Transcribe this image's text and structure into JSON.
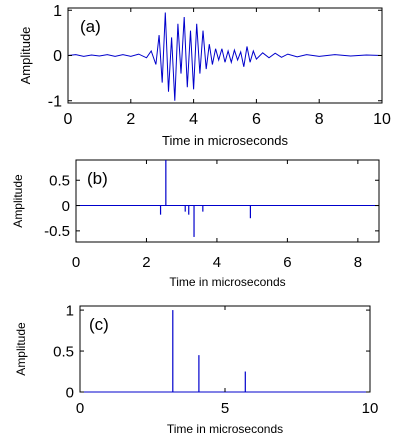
{
  "chart_data": [
    {
      "type": "line",
      "panel_label": "(a)",
      "xlabel": "Time in microseconds",
      "ylabel": "Amplitude",
      "xlim": [
        0,
        10
      ],
      "ylim": [
        -1.05,
        1.05
      ],
      "x_ticks": [
        0,
        2,
        4,
        6,
        8,
        10
      ],
      "x_tick_labels": [
        "0",
        "2",
        "4",
        "6",
        "8",
        "10"
      ],
      "y_ticks": [
        -1,
        0,
        1
      ],
      "y_tick_labels": [
        "-1",
        "0",
        "1"
      ],
      "color": "#0000cc",
      "series": [
        {
          "x": [
            0,
            0.25,
            0.5,
            0.75,
            1,
            1.25,
            1.5,
            1.75,
            2,
            2.25,
            2.5,
            2.65,
            2.8,
            2.9,
            3.0,
            3.1,
            3.2,
            3.3,
            3.4,
            3.5,
            3.6,
            3.7,
            3.8,
            3.9,
            4.0,
            4.1,
            4.2,
            4.3,
            4.4,
            4.5,
            4.6,
            4.7,
            4.8,
            4.9,
            5.0,
            5.1,
            5.2,
            5.3,
            5.4,
            5.5,
            5.6,
            5.7,
            5.8,
            5.9,
            6.0,
            6.2,
            6.4,
            6.6,
            6.8,
            7.0,
            7.3,
            7.6,
            8.0,
            8.5,
            9.0,
            9.5,
            10
          ],
          "y": [
            0,
            0.02,
            -0.02,
            0.01,
            -0.01,
            0.02,
            -0.02,
            0.02,
            -0.02,
            0.03,
            -0.05,
            0.1,
            -0.2,
            0.45,
            -0.6,
            0.95,
            -0.8,
            0.4,
            -1.0,
            0.7,
            -0.4,
            0.85,
            -0.7,
            0.55,
            -0.75,
            0.7,
            -0.4,
            0.55,
            -0.3,
            0.25,
            -0.2,
            0.15,
            -0.1,
            0.15,
            -0.15,
            0.1,
            -0.15,
            0.12,
            -0.1,
            0.08,
            -0.25,
            0.2,
            -0.15,
            0.1,
            -0.08,
            0.06,
            -0.05,
            0.05,
            -0.04,
            0.03,
            -0.03,
            0.02,
            -0.02,
            0.02,
            -0.01,
            0.01,
            0
          ]
        }
      ]
    },
    {
      "type": "stem",
      "panel_label": "(b)",
      "xlabel": "Time in microseconds",
      "ylabel": "Amplitude",
      "xlim": [
        0,
        8.6
      ],
      "ylim": [
        -0.72,
        0.9
      ],
      "x_ticks": [
        0,
        2,
        4,
        6,
        8
      ],
      "x_tick_labels": [
        "0",
        "2",
        "4",
        "6",
        "8"
      ],
      "y_ticks": [
        -0.5,
        0,
        0.5
      ],
      "y_tick_labels": [
        "-0.5",
        "0",
        "0.5"
      ],
      "color": "#0000cc",
      "series": [
        {
          "x": [
            2.4,
            2.55,
            3.1,
            3.2,
            3.35,
            3.6,
            4.95
          ],
          "y": [
            -0.18,
            0.9,
            -0.12,
            -0.18,
            -0.62,
            -0.12,
            -0.25
          ]
        }
      ]
    },
    {
      "type": "stem",
      "panel_label": "(c)",
      "xlabel": "Time in microseconds",
      "ylabel": "Amplitude",
      "xlim": [
        0,
        10
      ],
      "ylim": [
        0,
        1.05
      ],
      "x_ticks": [
        0,
        5,
        10
      ],
      "x_tick_labels": [
        "0",
        "5",
        "10"
      ],
      "y_ticks": [
        0,
        0.5,
        1
      ],
      "y_tick_labels": [
        "0",
        "0.5",
        "1"
      ],
      "color": "#0000cc",
      "series": [
        {
          "x": [
            3.2,
            4.1,
            5.7
          ],
          "y": [
            1.0,
            0.45,
            0.25
          ]
        }
      ]
    }
  ]
}
